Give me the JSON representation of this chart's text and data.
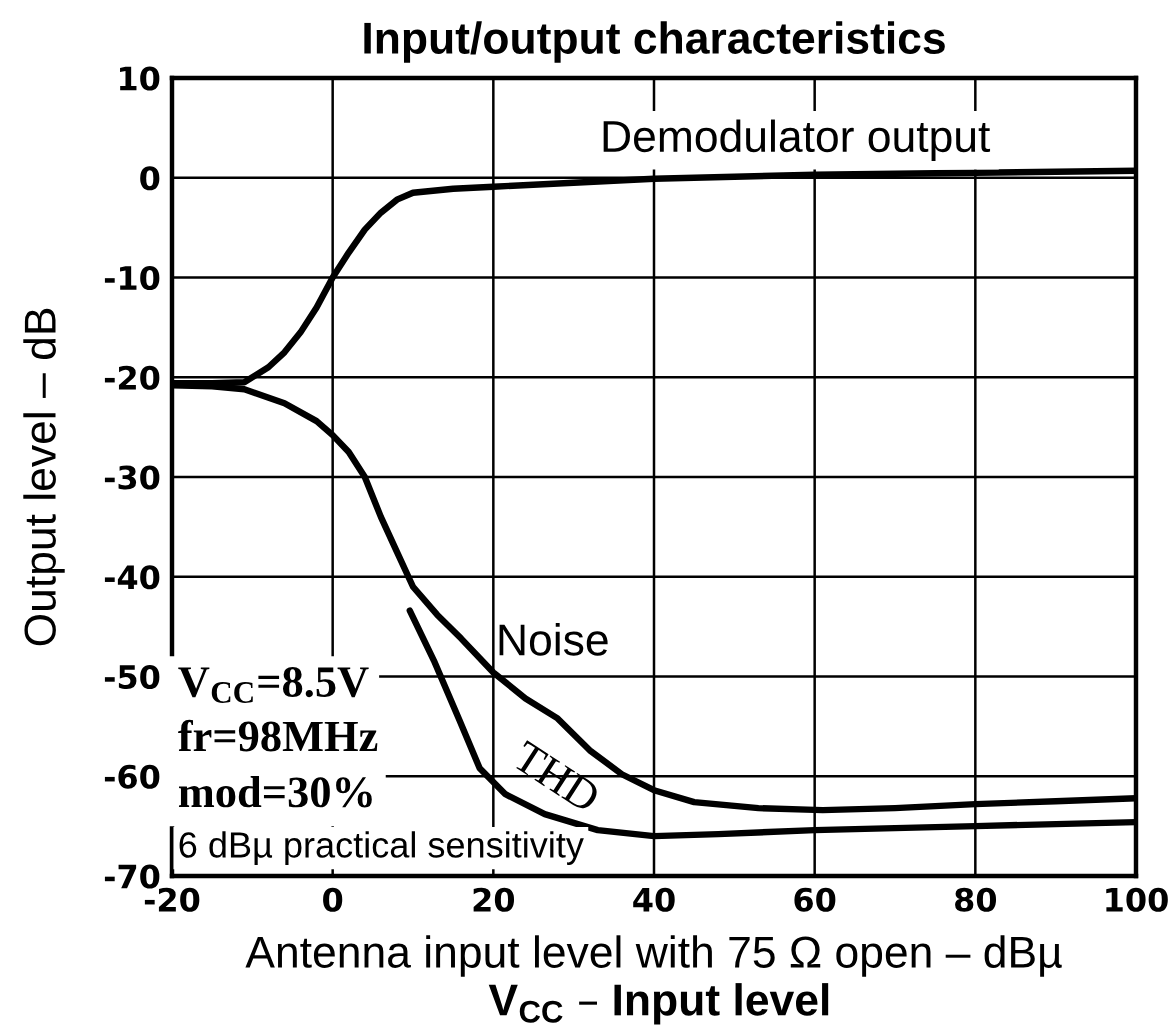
{
  "chart_data": {
    "type": "line",
    "title": "Input/output characteristics",
    "xlabel": "Antenna input level with 75 Ω open – dBµ",
    "ylabel": "Output level – dB",
    "xlim": [
      -20,
      100
    ],
    "ylim": [
      -70,
      10
    ],
    "xticks": [
      -20,
      0,
      20,
      40,
      60,
      80,
      100
    ],
    "yticks": [
      -70,
      -60,
      -50,
      -40,
      -30,
      -20,
      -10,
      0,
      10
    ],
    "grid": true,
    "legend": false,
    "series": [
      {
        "name": "Demodulator output",
        "color": "#000000",
        "x": [
          -20,
          -15,
          -11,
          -8,
          -6,
          -4,
          -2,
          0,
          2,
          4,
          6,
          8,
          10,
          15,
          20,
          30,
          40,
          50,
          60,
          80,
          100
        ],
        "values": [
          -20.6,
          -20.6,
          -20.5,
          -19,
          -17.5,
          -15.5,
          -13,
          -10,
          -7.5,
          -5.2,
          -3.5,
          -2.2,
          -1.5,
          -1.1,
          -0.9,
          -0.5,
          -0.1,
          0.1,
          0.3,
          0.5,
          0.7
        ]
      },
      {
        "name": "Noise",
        "color": "#000000",
        "x": [
          -20,
          -15,
          -11,
          -6,
          -2,
          0,
          2,
          4,
          6,
          8,
          10,
          13,
          16,
          20,
          24,
          28,
          32,
          36,
          40,
          45,
          53,
          61,
          70,
          80,
          90,
          100
        ],
        "values": [
          -20.8,
          -20.9,
          -21.2,
          -22.6,
          -24.4,
          -25.8,
          -27.5,
          -30,
          -34,
          -37.5,
          -41,
          -43.8,
          -46.2,
          -49.6,
          -52.2,
          -54.2,
          -57.4,
          -59.8,
          -61.4,
          -62.6,
          -63.2,
          -63.4,
          -63.2,
          -62.8,
          -62.5,
          -62.2
        ]
      },
      {
        "name": "THD",
        "color": "#000000",
        "x": [
          9.6,
          12.6,
          15.8,
          18.3,
          21.5,
          26.4,
          33,
          40,
          48,
          60,
          80,
          100
        ],
        "values": [
          -43.4,
          -48.4,
          -54.4,
          -59.2,
          -61.8,
          -63.8,
          -65.4,
          -66,
          -65.8,
          -65.4,
          -65,
          -64.6
        ]
      }
    ],
    "annotations": [
      "V$_{CC}$=8.5V",
      "fr=98MHz",
      "mod=30%",
      "6 dBµ practical sensitivity",
      "V$_{CC}$ – Input level"
    ]
  }
}
